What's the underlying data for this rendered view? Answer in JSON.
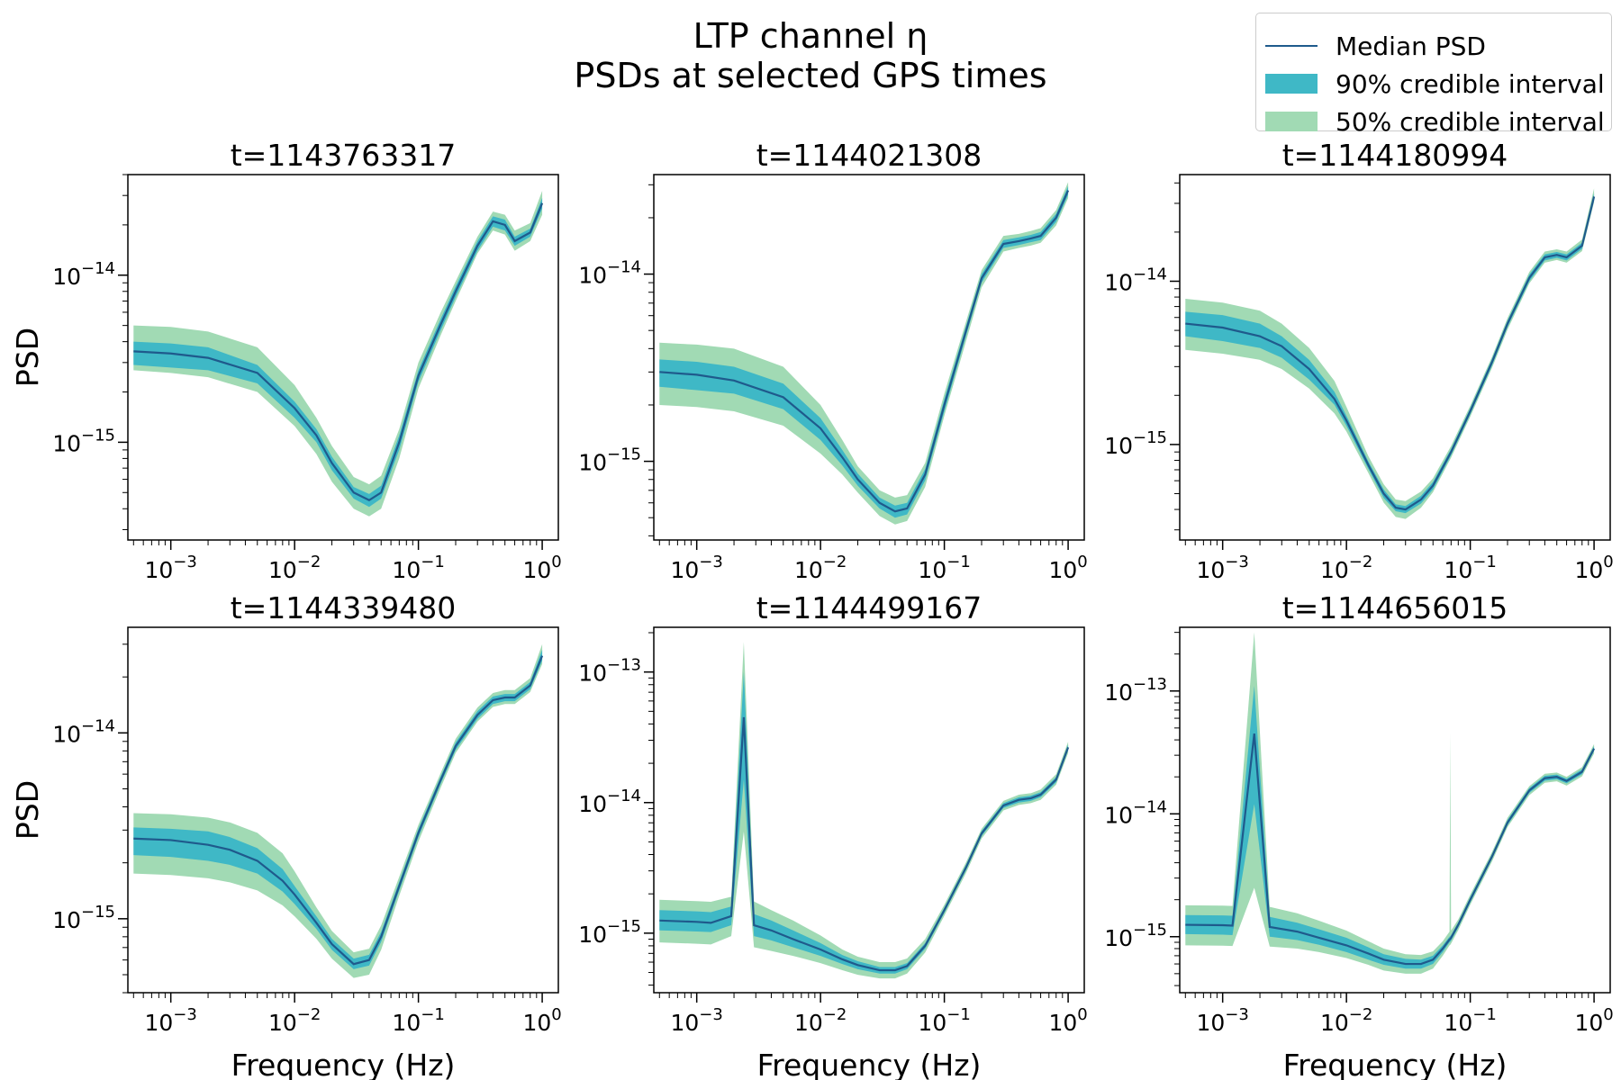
{
  "figure": {
    "title_line1": "LTP channel η",
    "title_line2": "PSDs at selected GPS times"
  },
  "legend": {
    "placement": "top-right",
    "items": [
      {
        "label": "Median PSD",
        "kind": "line",
        "color": "#1f5a8c"
      },
      {
        "label": "90% credible interval",
        "kind": "band",
        "color": "#3fb8c6"
      },
      {
        "label": "50% credible interval",
        "kind": "band",
        "color": "#a1dab4"
      }
    ]
  },
  "colors": {
    "median": "#1f5a8c",
    "ci90": "#3fb8c6",
    "ci50": "#a1dab4"
  },
  "chart_data": [
    {
      "type": "area",
      "title": "t=1143763317",
      "xlabel": "",
      "ylabel": "PSD",
      "xscale": "log",
      "yscale": "log",
      "xlim": [
        0.00045,
        1.35
      ],
      "ylim": [
        2.6e-16,
        4e-14
      ],
      "xticks": [
        "10^-3",
        "10^-2",
        "10^-1",
        "10^0"
      ],
      "yticks": [
        "10^-15",
        "10^-14"
      ],
      "x": [
        0.0005,
        0.001,
        0.002,
        0.005,
        0.01,
        0.015,
        0.02,
        0.03,
        0.04,
        0.05,
        0.07,
        0.1,
        0.15,
        0.2,
        0.3,
        0.4,
        0.5,
        0.6,
        0.8,
        1.0
      ],
      "median": [
        3.5e-15,
        3.4e-15,
        3.2e-15,
        2.6e-15,
        1.6e-15,
        1.1e-15,
        7.5e-16,
        5e-16,
        4.5e-16,
        5e-16,
        1e-15,
        2.5e-15,
        5e-15,
        8e-15,
        1.5e-14,
        2.1e-14,
        2e-14,
        1.6e-14,
        1.8e-14,
        2.7e-14
      ],
      "ci90_low": [
        2.9e-15,
        2.8e-15,
        2.7e-15,
        2.25e-15,
        1.4e-15,
        1e-15,
        6.8e-16,
        4.6e-16,
        4.1e-16,
        4.6e-16,
        9e-16,
        2.3e-15,
        4.6e-15,
        7.4e-15,
        1.4e-14,
        1.95e-14,
        1.85e-14,
        1.5e-14,
        1.7e-14,
        2.5e-14
      ],
      "ci90_high": [
        4e-15,
        3.9e-15,
        3.7e-15,
        2.9e-15,
        1.75e-15,
        1.2e-15,
        8.2e-16,
        5.4e-16,
        4.9e-16,
        5.5e-16,
        1.1e-15,
        2.7e-15,
        5.4e-15,
        8.6e-15,
        1.6e-14,
        2.25e-14,
        2.15e-14,
        1.7e-14,
        1.9e-14,
        2.9e-14
      ],
      "ci50_low": [
        2.7e-15,
        2.6e-15,
        2.45e-15,
        2e-15,
        1.25e-15,
        8.5e-16,
        5.8e-16,
        4e-16,
        3.6e-16,
        4e-16,
        8e-16,
        2.1e-15,
        4.3e-15,
        7e-15,
        1.35e-14,
        1.85e-14,
        1.75e-14,
        1.4e-14,
        1.6e-14,
        2.3e-14
      ],
      "ci50_high": [
        5e-15,
        4.9e-15,
        4.6e-15,
        3.7e-15,
        2.2e-15,
        1.4e-15,
        9.5e-16,
        6.2e-16,
        5.6e-16,
        6.3e-16,
        1.2e-15,
        3e-15,
        5.9e-15,
        9.2e-15,
        1.7e-14,
        2.4e-14,
        2.3e-14,
        1.85e-14,
        2.05e-14,
        3.2e-14
      ]
    },
    {
      "type": "area",
      "title": "t=1144021308",
      "xlabel": "",
      "ylabel": "",
      "xscale": "log",
      "yscale": "log",
      "xlim": [
        0.00045,
        1.35
      ],
      "ylim": [
        3.8e-16,
        3.4e-14
      ],
      "xticks": [
        "10^-3",
        "10^-2",
        "10^-1",
        "10^0"
      ],
      "yticks": [
        "10^-15",
        "10^-14"
      ],
      "x": [
        0.0005,
        0.001,
        0.002,
        0.005,
        0.01,
        0.015,
        0.02,
        0.03,
        0.04,
        0.05,
        0.07,
        0.1,
        0.15,
        0.2,
        0.3,
        0.4,
        0.5,
        0.6,
        0.8,
        1.0
      ],
      "median": [
        3e-15,
        2.9e-15,
        2.7e-15,
        2.2e-15,
        1.5e-15,
        1.05e-15,
        8e-16,
        6e-16,
        5.4e-16,
        5.6e-16,
        8.5e-16,
        2e-15,
        5e-15,
        9.5e-15,
        1.45e-14,
        1.5e-14,
        1.55e-14,
        1.6e-14,
        2e-14,
        2.8e-14
      ],
      "ci90_low": [
        2.5e-15,
        2.4e-15,
        2.3e-15,
        1.9e-15,
        1.3e-15,
        9.5e-16,
        7.4e-16,
        5.6e-16,
        5e-16,
        5.2e-16,
        7.9e-16,
        1.85e-15,
        4.7e-15,
        9e-15,
        1.38e-14,
        1.43e-14,
        1.48e-14,
        1.52e-14,
        1.9e-14,
        2.65e-14
      ],
      "ci90_high": [
        3.5e-15,
        3.4e-15,
        3.2e-15,
        2.6e-15,
        1.7e-15,
        1.15e-15,
        8.6e-16,
        6.4e-16,
        5.8e-16,
        6e-16,
        9.1e-16,
        2.15e-15,
        5.3e-15,
        1e-14,
        1.52e-14,
        1.57e-14,
        1.62e-14,
        1.68e-14,
        2.1e-14,
        2.95e-14
      ],
      "ci50_low": [
        2e-15,
        1.95e-15,
        1.85e-15,
        1.55e-15,
        1.1e-15,
        8.5e-16,
        6.8e-16,
        5.1e-16,
        4.6e-16,
        4.8e-16,
        7.3e-16,
        1.75e-15,
        4.4e-15,
        8.5e-15,
        1.32e-14,
        1.38e-14,
        1.42e-14,
        1.47e-14,
        1.82e-14,
        2.55e-14
      ],
      "ci50_high": [
        4.3e-15,
        4.2e-15,
        4e-15,
        3.2e-15,
        2e-15,
        1.3e-15,
        9.4e-16,
        7e-16,
        6.4e-16,
        6.6e-16,
        9.8e-16,
        2.3e-15,
        5.6e-15,
        1.05e-14,
        1.6e-14,
        1.64e-14,
        1.7e-14,
        1.76e-14,
        2.2e-14,
        3.1e-14
      ]
    },
    {
      "type": "area",
      "title": "t=1144180994",
      "xlabel": "",
      "ylabel": "",
      "xscale": "log",
      "yscale": "log",
      "xlim": [
        0.00045,
        1.35
      ],
      "ylim": [
        2.6e-16,
        4.5e-14
      ],
      "xticks": [
        "10^-3",
        "10^-2",
        "10^-1",
        "10^0"
      ],
      "yticks": [
        "10^-15",
        "10^-14"
      ],
      "x": [
        0.0005,
        0.001,
        0.002,
        0.003,
        0.005,
        0.008,
        0.01,
        0.015,
        0.02,
        0.025,
        0.03,
        0.04,
        0.05,
        0.07,
        0.1,
        0.15,
        0.2,
        0.3,
        0.4,
        0.5,
        0.6,
        0.8,
        1.0
      ],
      "median": [
        5.5e-15,
        5.2e-15,
        4.6e-15,
        4e-15,
        2.9e-15,
        1.9e-15,
        1.4e-15,
        7.5e-16,
        5e-16,
        4.1e-16,
        4e-16,
        4.6e-16,
        5.6e-16,
        9e-16,
        1.6e-15,
        3.2e-15,
        5.5e-15,
        1.05e-14,
        1.4e-14,
        1.45e-14,
        1.4e-14,
        1.65e-14,
        3.3e-14
      ],
      "ci90_low": [
        4.6e-15,
        4.3e-15,
        3.9e-15,
        3.4e-15,
        2.5e-15,
        1.75e-15,
        1.3e-15,
        7.1e-16,
        4.7e-16,
        3.9e-16,
        3.8e-16,
        4.35e-16,
        5.3e-16,
        8.6e-16,
        1.53e-15,
        3.05e-15,
        5.25e-15,
        1e-14,
        1.34e-14,
        1.39e-14,
        1.34e-14,
        1.58e-14,
        3.15e-14
      ],
      "ci90_high": [
        6.5e-15,
        6.2e-15,
        5.5e-15,
        4.6e-15,
        3.3e-15,
        2.1e-15,
        1.5e-15,
        7.9e-16,
        5.3e-16,
        4.3e-16,
        4.2e-16,
        4.85e-16,
        5.9e-16,
        9.4e-16,
        1.67e-15,
        3.35e-15,
        5.75e-15,
        1.1e-14,
        1.46e-14,
        1.51e-14,
        1.46e-14,
        1.72e-14,
        3.45e-14
      ],
      "ci50_low": [
        3.8e-15,
        3.6e-15,
        3.3e-15,
        2.9e-15,
        2.2e-15,
        1.55e-15,
        1.2e-15,
        6.7e-16,
        4.4e-16,
        3.6e-16,
        3.5e-16,
        4.1e-16,
        5.1e-16,
        8.3e-16,
        1.48e-15,
        2.95e-15,
        5.05e-15,
        9.7e-15,
        1.3e-14,
        1.35e-14,
        1.3e-14,
        1.53e-14,
        3.05e-14
      ],
      "ci50_high": [
        7.8e-15,
        7.4e-15,
        6.6e-15,
        5.5e-15,
        3.9e-15,
        2.45e-15,
        1.7e-15,
        8.5e-16,
        5.7e-16,
        4.6e-16,
        4.5e-16,
        5.15e-16,
        6.2e-16,
        9.8e-16,
        1.73e-15,
        3.45e-15,
        5.95e-15,
        1.14e-14,
        1.52e-14,
        1.57e-14,
        1.52e-14,
        1.8e-14,
        3.7e-14
      ]
    },
    {
      "type": "area",
      "title": "t=1144339480",
      "xlabel": "Frequency (Hz)",
      "ylabel": "PSD",
      "xscale": "log",
      "yscale": "log",
      "xlim": [
        0.00045,
        1.35
      ],
      "ylim": [
        4e-16,
        3.7e-14
      ],
      "xticks": [
        "10^-3",
        "10^-2",
        "10^-1",
        "10^0"
      ],
      "yticks": [
        "10^-15",
        "10^-14"
      ],
      "x": [
        0.0005,
        0.001,
        0.002,
        0.003,
        0.005,
        0.008,
        0.01,
        0.015,
        0.02,
        0.03,
        0.04,
        0.05,
        0.07,
        0.1,
        0.15,
        0.2,
        0.3,
        0.4,
        0.5,
        0.6,
        0.8,
        1.0
      ],
      "median": [
        2.7e-15,
        2.65e-15,
        2.5e-15,
        2.35e-15,
        2.05e-15,
        1.6e-15,
        1.35e-15,
        9.5e-16,
        7.3e-16,
        5.7e-16,
        6e-16,
        8e-16,
        1.5e-15,
        2.9e-15,
        5.5e-15,
        8.5e-15,
        1.25e-14,
        1.5e-14,
        1.55e-14,
        1.55e-14,
        1.8e-14,
        2.6e-14
      ],
      "ci90_low": [
        2.2e-15,
        2.15e-15,
        2.05e-15,
        1.95e-15,
        1.75e-15,
        1.4e-15,
        1.2e-15,
        8.8e-16,
        6.8e-16,
        5.35e-16,
        5.6e-16,
        7.5e-16,
        1.42e-15,
        2.75e-15,
        5.25e-15,
        8.1e-15,
        1.19e-14,
        1.43e-14,
        1.48e-14,
        1.48e-14,
        1.72e-14,
        2.45e-14
      ],
      "ci90_high": [
        3.1e-15,
        3.05e-15,
        2.95e-15,
        2.75e-15,
        2.4e-15,
        1.85e-15,
        1.5e-15,
        1.03e-15,
        7.8e-16,
        6.1e-16,
        6.4e-16,
        8.5e-16,
        1.58e-15,
        3.05e-15,
        5.75e-15,
        8.9e-15,
        1.31e-14,
        1.57e-14,
        1.62e-14,
        1.62e-14,
        1.88e-14,
        2.8e-14
      ],
      "ci50_low": [
        1.75e-15,
        1.72e-15,
        1.65e-15,
        1.57e-15,
        1.42e-15,
        1.18e-15,
        1.03e-15,
        7.8e-16,
        6.1e-16,
        4.8e-16,
        5e-16,
        6.8e-16,
        1.33e-15,
        2.6e-15,
        5e-15,
        7.8e-15,
        1.15e-14,
        1.38e-14,
        1.43e-14,
        1.43e-14,
        1.66e-14,
        2.35e-14
      ],
      "ci50_high": [
        3.7e-15,
        3.65e-15,
        3.5e-15,
        3.3e-15,
        2.9e-15,
        2.25e-15,
        1.8e-15,
        1.15e-15,
        8.6e-16,
        6.6e-16,
        6.9e-16,
        9.2e-16,
        1.68e-15,
        3.2e-15,
        6e-15,
        9.3e-15,
        1.37e-14,
        1.64e-14,
        1.7e-14,
        1.7e-14,
        1.97e-14,
        3e-14
      ]
    },
    {
      "type": "area",
      "title": "t=1144499167",
      "xlabel": "Frequency (Hz)",
      "ylabel": "",
      "xscale": "log",
      "yscale": "log",
      "xlim": [
        0.00045,
        1.35
      ],
      "ylim": [
        3.5e-16,
        2.2e-13
      ],
      "xticks": [
        "10^-3",
        "10^-2",
        "10^-1",
        "10^0"
      ],
      "yticks": [
        "10^-15",
        "10^-14",
        "10^-13"
      ],
      "x": [
        0.0005,
        0.001,
        0.0013,
        0.0019,
        0.0024,
        0.0029,
        0.004,
        0.006,
        0.01,
        0.015,
        0.02,
        0.03,
        0.04,
        0.05,
        0.07,
        0.1,
        0.15,
        0.2,
        0.3,
        0.4,
        0.5,
        0.6,
        0.8,
        1.0
      ],
      "median": [
        1.25e-15,
        1.22e-15,
        1.2e-15,
        1.35e-15,
        4.5e-14,
        1.15e-15,
        1.05e-15,
        9e-16,
        7.5e-16,
        6.3e-16,
        5.7e-16,
        5.2e-16,
        5.2e-16,
        5.6e-16,
        8e-16,
        1.5e-15,
        3.2e-15,
        5.8e-15,
        9.5e-15,
        1.05e-14,
        1.08e-14,
        1.15e-14,
        1.5e-14,
        2.65e-14
      ],
      "ci90_low": [
        1.05e-15,
        1.03e-15,
        1.02e-15,
        1.15e-15,
        1.5e-14,
        9.5e-16,
        8.8e-16,
        7.8e-16,
        6.7e-16,
        5.8e-16,
        5.3e-16,
        4.9e-16,
        4.9e-16,
        5.3e-16,
        7.6e-16,
        1.43e-15,
        3.05e-15,
        5.55e-15,
        9.1e-15,
        1e-14,
        1.03e-14,
        1.1e-14,
        1.43e-14,
        2.52e-14
      ],
      "ci90_high": [
        1.5e-15,
        1.47e-15,
        1.45e-15,
        1.6e-15,
        1e-13,
        1.4e-15,
        1.25e-15,
        1.05e-15,
        8.4e-16,
        6.8e-16,
        6.1e-16,
        5.5e-16,
        5.5e-16,
        5.9e-16,
        8.4e-16,
        1.57e-15,
        3.35e-15,
        6.05e-15,
        9.9e-15,
        1.1e-14,
        1.13e-14,
        1.2e-14,
        1.57e-14,
        2.78e-14
      ],
      "ci50_low": [
        8.5e-16,
        8.3e-16,
        8.2e-16,
        9.5e-16,
        6e-15,
        7.8e-16,
        7.3e-16,
        6.7e-16,
        5.9e-16,
        5.2e-16,
        4.8e-16,
        4.5e-16,
        4.5e-16,
        4.9e-16,
        7.1e-16,
        1.36e-15,
        2.9e-15,
        5.3e-15,
        8.7e-15,
        9.6e-15,
        9.9e-15,
        1.05e-14,
        1.37e-14,
        2.4e-14
      ],
      "ci50_high": [
        1.8e-15,
        1.76e-15,
        1.74e-15,
        1.9e-15,
        1.7e-13,
        1.75e-15,
        1.5e-15,
        1.25e-15,
        9.6e-16,
        7.5e-16,
        6.6e-16,
        6e-16,
        6e-16,
        6.4e-16,
        9e-16,
        1.65e-15,
        3.5e-15,
        6.3e-15,
        1.03e-14,
        1.15e-14,
        1.18e-14,
        1.26e-14,
        1.65e-14,
        2.92e-14
      ]
    },
    {
      "type": "area",
      "title": "t=1144656015",
      "xlabel": "Frequency (Hz)",
      "ylabel": "",
      "xscale": "log",
      "yscale": "log",
      "xlim": [
        0.00045,
        1.35
      ],
      "ylim": [
        3.5e-16,
        3.3e-13
      ],
      "xticks": [
        "10^-3",
        "10^-2",
        "10^-1",
        "10^0"
      ],
      "yticks": [
        "10^-15",
        "10^-14",
        "10^-13"
      ],
      "x": [
        0.0005,
        0.001,
        0.0012,
        0.0018,
        0.0024,
        0.004,
        0.006,
        0.01,
        0.015,
        0.02,
        0.03,
        0.04,
        0.05,
        0.06,
        0.068,
        0.069,
        0.07,
        0.08,
        0.1,
        0.15,
        0.2,
        0.3,
        0.4,
        0.5,
        0.6,
        0.8,
        1.0
      ],
      "median": [
        1.25e-15,
        1.24e-15,
        1.23e-15,
        4.5e-14,
        1.2e-15,
        1.1e-15,
        9.8e-16,
        8.5e-16,
        7.3e-16,
        6.5e-16,
        6e-16,
        6e-16,
        6.5e-16,
        8e-16,
        9.5e-16,
        9.6e-16,
        9.8e-16,
        1.25e-15,
        2e-15,
        4.5e-15,
        8.5e-15,
        1.55e-14,
        1.95e-14,
        2e-14,
        1.85e-14,
        2.2e-14,
        3.4e-14
      ],
      "ci90_low": [
        1.05e-15,
        1.04e-15,
        1.03e-15,
        1.2e-14,
        1e-15,
        9.4e-16,
        8.6e-16,
        7.5e-16,
        6.5e-16,
        5.9e-16,
        5.5e-16,
        5.5e-16,
        6e-16,
        7.5e-16,
        9e-16,
        9.1e-16,
        9.3e-16,
        1.19e-15,
        1.9e-15,
        4.3e-15,
        8.1e-15,
        1.48e-14,
        1.86e-14,
        1.91e-14,
        1.77e-14,
        2.1e-14,
        3.25e-14
      ],
      "ci90_high": [
        1.5e-15,
        1.49e-15,
        1.48e-15,
        1.1e-13,
        1.45e-15,
        1.3e-15,
        1.15e-15,
        9.8e-16,
        8.2e-16,
        7.2e-16,
        6.6e-16,
        6.5e-16,
        7e-16,
        8.5e-16,
        1e-15,
        1.01e-15,
        1.03e-15,
        1.31e-15,
        2.1e-15,
        4.7e-15,
        8.9e-15,
        1.62e-14,
        2.04e-14,
        2.09e-14,
        1.93e-14,
        2.3e-14,
        3.55e-14
      ],
      "ci50_low": [
        8.5e-16,
        8.45e-16,
        8.4e-16,
        2.5e-15,
        8.3e-16,
        8e-16,
        7.5e-16,
        6.7e-16,
        5.9e-16,
        5.3e-16,
        5e-16,
        5e-16,
        5.5e-16,
        7e-16,
        8.5e-16,
        8.6e-16,
        8.8e-16,
        1.13e-15,
        1.82e-15,
        4.1e-15,
        7.8e-15,
        1.42e-14,
        1.79e-14,
        1.84e-14,
        1.7e-14,
        2.02e-14,
        3.1e-14
      ],
      "ci50_high": [
        1.8e-15,
        1.79e-15,
        1.78e-15,
        3e-13,
        1.75e-15,
        1.55e-15,
        1.35e-15,
        1.12e-15,
        9.2e-16,
        8e-16,
        7.2e-16,
        7.1e-16,
        7.6e-16,
        9.2e-16,
        1.1e-15,
        4.6e-14,
        1.12e-15,
        1.38e-15,
        2.2e-15,
        4.9e-15,
        9.3e-15,
        1.68e-14,
        2.12e-14,
        2.17e-14,
        2e-14,
        2.4e-14,
        3.7e-14
      ]
    }
  ]
}
